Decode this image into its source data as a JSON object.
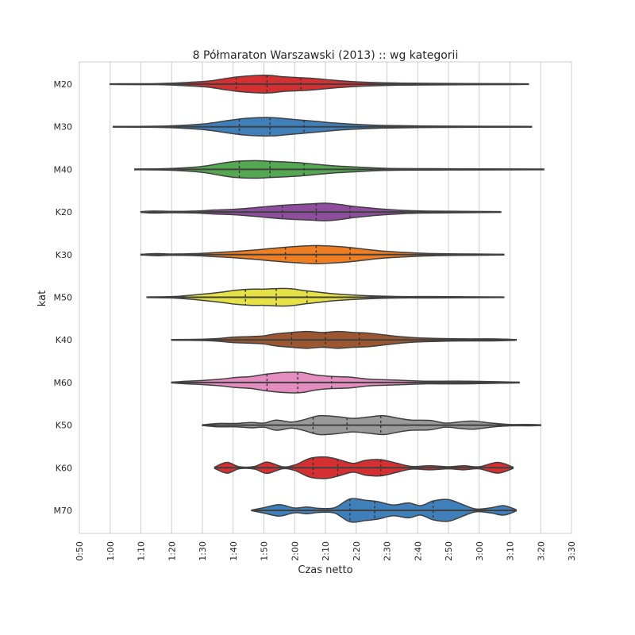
{
  "chart_data": {
    "type": "violin",
    "title": "8 Półmaraton Warszawski (2013) :: wg kategorii",
    "xlabel": "Czas netto",
    "ylabel": "kat",
    "x_unit": "minutes",
    "xlim": [
      50,
      210
    ],
    "x_ticks": [
      50,
      60,
      70,
      80,
      90,
      100,
      110,
      120,
      130,
      140,
      150,
      160,
      170,
      180,
      190,
      200,
      210
    ],
    "x_tick_labels": [
      "0:50",
      "1:00",
      "1:10",
      "1:20",
      "1:30",
      "1:40",
      "1:50",
      "2:00",
      "2:10",
      "2:20",
      "2:30",
      "2:40",
      "2:50",
      "3:00",
      "3:10",
      "3:20",
      "3:30"
    ],
    "grid": "vertical",
    "categories": [
      "M20",
      "M30",
      "M40",
      "K20",
      "K30",
      "M50",
      "K40",
      "M60",
      "K50",
      "K60",
      "M70"
    ],
    "series": [
      {
        "name": "M20",
        "color": "#d62f32",
        "min": 60,
        "max": 196,
        "quartiles": [
          101,
          111,
          122
        ],
        "profile": [
          [
            60,
            0.5
          ],
          [
            75,
            0.8
          ],
          [
            85,
            2.5
          ],
          [
            92,
            4.5
          ],
          [
            97,
            8
          ],
          [
            102,
            11
          ],
          [
            108,
            13
          ],
          [
            112,
            13
          ],
          [
            116,
            11
          ],
          [
            120,
            10
          ],
          [
            126,
            8.5
          ],
          [
            132,
            6
          ],
          [
            138,
            4
          ],
          [
            145,
            2.5
          ],
          [
            155,
            1.5
          ],
          [
            170,
            1
          ],
          [
            185,
            0.8
          ],
          [
            196,
            0.5
          ]
        ]
      },
      {
        "name": "M30",
        "color": "#3f7fba",
        "min": 61,
        "max": 197,
        "quartiles": [
          102,
          112,
          123
        ],
        "profile": [
          [
            61,
            0.5
          ],
          [
            75,
            0.8
          ],
          [
            85,
            2.5
          ],
          [
            92,
            5
          ],
          [
            98,
            9
          ],
          [
            103,
            12
          ],
          [
            108,
            13.5
          ],
          [
            113,
            13.5
          ],
          [
            118,
            11.5
          ],
          [
            122,
            10
          ],
          [
            127,
            8
          ],
          [
            133,
            5.5
          ],
          [
            140,
            3.5
          ],
          [
            148,
            2
          ],
          [
            160,
            1.2
          ],
          [
            175,
            0.8
          ],
          [
            197,
            0.5
          ]
        ]
      },
      {
        "name": "M40",
        "color": "#55a852",
        "min": 68,
        "max": 201,
        "quartiles": [
          102,
          112,
          123
        ],
        "profile": [
          [
            68,
            0.5
          ],
          [
            78,
            1
          ],
          [
            85,
            2.5
          ],
          [
            91,
            5
          ],
          [
            96,
            9
          ],
          [
            101,
            12
          ],
          [
            107,
            13
          ],
          [
            112,
            12
          ],
          [
            117,
            11
          ],
          [
            121,
            10
          ],
          [
            126,
            8
          ],
          [
            132,
            5.5
          ],
          [
            140,
            3.5
          ],
          [
            150,
            1.5
          ],
          [
            165,
            1
          ],
          [
            180,
            0.8
          ],
          [
            201,
            0.5
          ]
        ]
      },
      {
        "name": "K20",
        "color": "#8f4d9e",
        "min": 70,
        "max": 187,
        "quartiles": [
          116,
          127,
          138
        ],
        "profile": [
          [
            70,
            0.5
          ],
          [
            74,
            1.5
          ],
          [
            80,
            1
          ],
          [
            88,
            1.5
          ],
          [
            94,
            3
          ],
          [
            100,
            4
          ],
          [
            106,
            6
          ],
          [
            112,
            8.5
          ],
          [
            116,
            10
          ],
          [
            120,
            11
          ],
          [
            125,
            12
          ],
          [
            130,
            13
          ],
          [
            135,
            11
          ],
          [
            138,
            9
          ],
          [
            142,
            7
          ],
          [
            148,
            4.5
          ],
          [
            155,
            2.5
          ],
          [
            162,
            1.5
          ],
          [
            170,
            1.2
          ],
          [
            187,
            0.5
          ]
        ]
      },
      {
        "name": "K30",
        "color": "#ee7e21",
        "min": 70,
        "max": 188,
        "quartiles": [
          117,
          127,
          138
        ],
        "profile": [
          [
            70,
            0.5
          ],
          [
            75,
            1.5
          ],
          [
            80,
            1
          ],
          [
            88,
            1.5
          ],
          [
            94,
            3
          ],
          [
            100,
            4.5
          ],
          [
            106,
            6.5
          ],
          [
            112,
            9
          ],
          [
            117,
            11
          ],
          [
            122,
            12.5
          ],
          [
            127,
            13.5
          ],
          [
            132,
            12.5
          ],
          [
            137,
            11
          ],
          [
            142,
            8.5
          ],
          [
            148,
            5.5
          ],
          [
            155,
            3.5
          ],
          [
            162,
            2
          ],
          [
            170,
            1.2
          ],
          [
            178,
            1
          ],
          [
            188,
            0.5
          ]
        ]
      },
      {
        "name": "M50",
        "color": "#e6e145",
        "min": 72,
        "max": 188,
        "quartiles": [
          104,
          114,
          124
        ],
        "profile": [
          [
            72,
            0.5
          ],
          [
            80,
            1
          ],
          [
            85,
            2.5
          ],
          [
            90,
            4.5
          ],
          [
            96,
            7.5
          ],
          [
            101,
            10.5
          ],
          [
            106,
            12
          ],
          [
            110,
            12
          ],
          [
            115,
            13
          ],
          [
            119,
            12.5
          ],
          [
            123,
            10
          ],
          [
            127,
            8
          ],
          [
            132,
            5.5
          ],
          [
            138,
            3.5
          ],
          [
            145,
            2
          ],
          [
            155,
            1
          ],
          [
            165,
            1
          ],
          [
            188,
            0.5
          ]
        ]
      },
      {
        "name": "K40",
        "color": "#9c5730",
        "min": 80,
        "max": 192,
        "quartiles": [
          119,
          130,
          141
        ],
        "profile": [
          [
            80,
            0.5
          ],
          [
            90,
            1
          ],
          [
            95,
            2
          ],
          [
            100,
            4
          ],
          [
            106,
            5
          ],
          [
            110,
            6
          ],
          [
            114,
            9
          ],
          [
            119,
            11
          ],
          [
            124,
            12.5
          ],
          [
            129,
            11
          ],
          [
            134,
            12.5
          ],
          [
            139,
            11
          ],
          [
            144,
            10
          ],
          [
            149,
            7.5
          ],
          [
            154,
            5
          ],
          [
            160,
            3
          ],
          [
            168,
            2
          ],
          [
            176,
            1.5
          ],
          [
            184,
            1.5
          ],
          [
            192,
            0.5
          ]
        ]
      },
      {
        "name": "M60",
        "color": "#e58dc1",
        "min": 80,
        "max": 193,
        "quartiles": [
          111,
          121,
          132
        ],
        "profile": [
          [
            80,
            0.5
          ],
          [
            85,
            2
          ],
          [
            90,
            3
          ],
          [
            96,
            5
          ],
          [
            101,
            7.5
          ],
          [
            106,
            9
          ],
          [
            111,
            12.5
          ],
          [
            117,
            15
          ],
          [
            122,
            15
          ],
          [
            127,
            11
          ],
          [
            132,
            9
          ],
          [
            138,
            8
          ],
          [
            144,
            5
          ],
          [
            150,
            4
          ],
          [
            156,
            3
          ],
          [
            162,
            2
          ],
          [
            168,
            2
          ],
          [
            175,
            2
          ],
          [
            182,
            1.5
          ],
          [
            193,
            0.5
          ]
        ]
      },
      {
        "name": "K50",
        "color": "#999999",
        "min": 90,
        "max": 200,
        "quartiles": [
          126,
          137,
          148
        ],
        "profile": [
          [
            90,
            0.5
          ],
          [
            95,
            2.5
          ],
          [
            101,
            2.5
          ],
          [
            106,
            4
          ],
          [
            110,
            3
          ],
          [
            114,
            7.5
          ],
          [
            119,
            4.5
          ],
          [
            123,
            8
          ],
          [
            128,
            14
          ],
          [
            134,
            12.5
          ],
          [
            139,
            10
          ],
          [
            144,
            12
          ],
          [
            149,
            14
          ],
          [
            154,
            10
          ],
          [
            158,
            7.5
          ],
          [
            164,
            7
          ],
          [
            169,
            3
          ],
          [
            174,
            5
          ],
          [
            178,
            6
          ],
          [
            184,
            3
          ],
          [
            190,
            1
          ],
          [
            196,
            1
          ],
          [
            200,
            0.5
          ]
        ]
      },
      {
        "name": "K60",
        "color": "#d62f32",
        "min": 94,
        "max": 191,
        "quartiles": [
          126,
          134,
          148
        ],
        "profile": [
          [
            94,
            1
          ],
          [
            98,
            8
          ],
          [
            102,
            1.5
          ],
          [
            107,
            2
          ],
          [
            111,
            8.5
          ],
          [
            116,
            1.5
          ],
          [
            120,
            4
          ],
          [
            125,
            14
          ],
          [
            130,
            16
          ],
          [
            134,
            12.5
          ],
          [
            139,
            6.5
          ],
          [
            143,
            11
          ],
          [
            148,
            12
          ],
          [
            153,
            7
          ],
          [
            158,
            2
          ],
          [
            164,
            3
          ],
          [
            170,
            1.5
          ],
          [
            175,
            3
          ],
          [
            180,
            1.5
          ],
          [
            186,
            8
          ],
          [
            191,
            1
          ]
        ]
      },
      {
        "name": "M70",
        "color": "#3f7fba",
        "min": 106,
        "max": 192,
        "quartiles": [
          138,
          146,
          165
        ],
        "profile": [
          [
            106,
            0.5
          ],
          [
            110,
            4
          ],
          [
            115,
            8.5
          ],
          [
            120,
            3.5
          ],
          [
            124,
            5
          ],
          [
            128,
            3
          ],
          [
            133,
            4
          ],
          [
            138,
            17
          ],
          [
            143,
            15
          ],
          [
            147,
            13
          ],
          [
            152,
            8
          ],
          [
            157,
            11
          ],
          [
            161,
            7
          ],
          [
            165,
            14
          ],
          [
            170,
            16
          ],
          [
            175,
            8
          ],
          [
            179,
            2
          ],
          [
            184,
            4
          ],
          [
            188,
            7
          ],
          [
            192,
            1
          ]
        ]
      }
    ]
  }
}
